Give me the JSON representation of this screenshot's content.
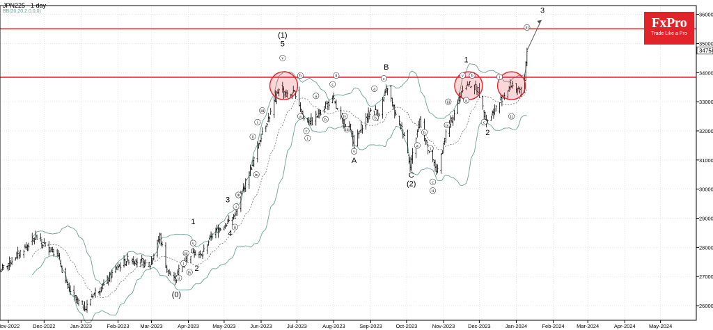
{
  "header": {
    "title": "JPN225 - 1 day",
    "indicator": "BB(20,20,2.0,0,0)"
  },
  "logo": {
    "brand": "FxPro",
    "tagline": "Trade Like a Pro"
  },
  "colors": {
    "candle": "#000000",
    "band": "#6b9e92",
    "middle": "#555555",
    "resistance": "#e3232a",
    "logo_bg": "#e3232a",
    "arrow_up": "#1a9a1a",
    "arrow_down": "#cc1a1a"
  },
  "chart_data": {
    "type": "candlestick",
    "symbol": "JPN225",
    "timeframe": "1 day",
    "ylim": [
      25500,
      36300
    ],
    "y_ticks": [
      26000,
      27000,
      28000,
      29000,
      30000,
      31000,
      32000,
      33000,
      34000,
      35000,
      36000
    ],
    "x_ticks": [
      "Nov-2022",
      "Dec-2022",
      "Jan-2023",
      "Feb-2023",
      "Mar-2023",
      "Apr-2023",
      "May-2023",
      "Jun-2023",
      "Jul-2023",
      "Aug-2023",
      "Sep-2023",
      "Oct-2023",
      "Nov-2023",
      "Dec-2023",
      "Jan-2024",
      "Feb-2024",
      "Mar-2024",
      "Apr-2024",
      "May-2024"
    ],
    "current_price": "34754",
    "resistance_levels": [
      35500,
      33840
    ],
    "close_path": [
      {
        "d": "2022-10-25",
        "v": 27200
      },
      {
        "d": "2022-11-05",
        "v": 27600
      },
      {
        "d": "2022-11-15",
        "v": 28000
      },
      {
        "d": "2022-11-24",
        "v": 28350
      },
      {
        "d": "2022-12-01",
        "v": 28100
      },
      {
        "d": "2022-12-12",
        "v": 27800
      },
      {
        "d": "2022-12-20",
        "v": 26700
      },
      {
        "d": "2022-12-28",
        "v": 26200
      },
      {
        "d": "2023-01-05",
        "v": 25900
      },
      {
        "d": "2023-01-11",
        "v": 26400
      },
      {
        "d": "2023-01-20",
        "v": 26700
      },
      {
        "d": "2023-01-31",
        "v": 27300
      },
      {
        "d": "2023-02-10",
        "v": 27600
      },
      {
        "d": "2023-02-20",
        "v": 27500
      },
      {
        "d": "2023-02-28",
        "v": 27400
      },
      {
        "d": "2023-03-08",
        "v": 28400
      },
      {
        "d": "2023-03-14",
        "v": 27200
      },
      {
        "d": "2023-03-20",
        "v": 26900
      },
      {
        "d": "2023-03-28",
        "v": 27500
      },
      {
        "d": "2023-04-05",
        "v": 27900
      },
      {
        "d": "2023-04-12",
        "v": 27700
      },
      {
        "d": "2023-04-20",
        "v": 28400
      },
      {
        "d": "2023-04-28",
        "v": 28700
      },
      {
        "d": "2023-05-05",
        "v": 28900
      },
      {
        "d": "2023-05-10",
        "v": 29100
      },
      {
        "d": "2023-05-17",
        "v": 30000
      },
      {
        "d": "2023-05-25",
        "v": 30900
      },
      {
        "d": "2023-06-02",
        "v": 32000
      },
      {
        "d": "2023-06-09",
        "v": 32600
      },
      {
        "d": "2023-06-16",
        "v": 33500
      },
      {
        "d": "2023-06-23",
        "v": 33200
      },
      {
        "d": "2023-06-30",
        "v": 33300
      },
      {
        "d": "2023-07-07",
        "v": 32400
      },
      {
        "d": "2023-07-14",
        "v": 32300
      },
      {
        "d": "2023-07-21",
        "v": 32700
      },
      {
        "d": "2023-07-31",
        "v": 33100
      },
      {
        "d": "2023-08-08",
        "v": 32300
      },
      {
        "d": "2023-08-15",
        "v": 32100
      },
      {
        "d": "2023-08-18",
        "v": 31500
      },
      {
        "d": "2023-08-25",
        "v": 32200
      },
      {
        "d": "2023-09-01",
        "v": 32700
      },
      {
        "d": "2023-09-08",
        "v": 32600
      },
      {
        "d": "2023-09-15",
        "v": 33500
      },
      {
        "d": "2023-09-22",
        "v": 32500
      },
      {
        "d": "2023-09-29",
        "v": 31900
      },
      {
        "d": "2023-10-04",
        "v": 30800
      },
      {
        "d": "2023-10-12",
        "v": 32400
      },
      {
        "d": "2023-10-20",
        "v": 31200
      },
      {
        "d": "2023-10-27",
        "v": 30600
      },
      {
        "d": "2023-11-03",
        "v": 31900
      },
      {
        "d": "2023-11-10",
        "v": 32600
      },
      {
        "d": "2023-11-17",
        "v": 33500
      },
      {
        "d": "2023-11-24",
        "v": 33600
      },
      {
        "d": "2023-11-30",
        "v": 33400
      },
      {
        "d": "2023-12-07",
        "v": 32300
      },
      {
        "d": "2023-12-14",
        "v": 32700
      },
      {
        "d": "2023-12-21",
        "v": 33200
      },
      {
        "d": "2023-12-28",
        "v": 33600
      },
      {
        "d": "2024-01-04",
        "v": 33300
      },
      {
        "d": "2024-01-08",
        "v": 33800
      },
      {
        "d": "2024-01-10",
        "v": 34754
      }
    ],
    "projection": [
      {
        "d": "2024-01-10",
        "v": 34754
      },
      {
        "d": "2024-01-22",
        "v": 35800
      }
    ],
    "circles": [
      {
        "d": "2023-06-20",
        "v": 33550
      },
      {
        "d": "2023-11-22",
        "v": 33550
      },
      {
        "d": "2023-12-28",
        "v": 33550
      }
    ],
    "wave_labels": [
      {
        "t": "(0)",
        "d": "2023-03-22",
        "v": 26300
      },
      {
        "t": "1",
        "d": "2023-04-05",
        "v": 28800
      },
      {
        "t": "2",
        "d": "2023-04-08",
        "v": 27200
      },
      {
        "t": "3",
        "d": "2023-05-04",
        "v": 29550
      },
      {
        "t": "4",
        "d": "2023-05-06",
        "v": 28400
      },
      {
        "t": "(1)",
        "d": "2023-06-19",
        "v": 35200
      },
      {
        "t": "5",
        "d": "2023-06-19",
        "v": 34900
      },
      {
        "t": "A",
        "d": "2023-08-18",
        "v": 30900
      },
      {
        "t": "B",
        "d": "2023-09-14",
        "v": 34100
      },
      {
        "t": "C",
        "d": "2023-10-05",
        "v": 30400
      },
      {
        "t": "(2)",
        "d": "2023-10-05",
        "v": 30100
      },
      {
        "t": "1",
        "d": "2023-11-20",
        "v": 34350
      },
      {
        "t": "2",
        "d": "2023-12-08",
        "v": 31850
      },
      {
        "t": "3",
        "d": "2024-01-23",
        "v": 36050
      }
    ],
    "sub_labels": [
      {
        "t": "i",
        "d": "2023-03-28",
        "v": 27450
      },
      {
        "t": "ii",
        "d": "2023-03-24",
        "v": 26950
      },
      {
        "t": "iii",
        "d": "2023-03-30",
        "v": 27800
      },
      {
        "t": "iv",
        "d": "2023-04-02",
        "v": 27150
      },
      {
        "t": "v",
        "d": "2023-04-05",
        "v": 28150
      },
      {
        "t": "i",
        "d": "2023-05-11",
        "v": 29400
      },
      {
        "t": "ii",
        "d": "2023-05-10",
        "v": 28700
      },
      {
        "t": "iii",
        "d": "2023-05-13",
        "v": 29800
      },
      {
        "t": "i",
        "d": "2023-05-29",
        "v": 32300
      },
      {
        "t": "ii",
        "d": "2023-05-25",
        "v": 31800
      },
      {
        "t": "iii",
        "d": "2023-06-02",
        "v": 32700
      },
      {
        "t": "iv",
        "d": "2023-05-28",
        "v": 30500
      },
      {
        "t": "v",
        "d": "2023-06-19",
        "v": 34500
      },
      {
        "t": "a",
        "d": "2023-07-04",
        "v": 32500
      },
      {
        "t": "b",
        "d": "2023-07-04",
        "v": 33900
      },
      {
        "t": "c",
        "d": "2023-07-09",
        "v": 32000
      },
      {
        "t": "i",
        "d": "2023-07-10",
        "v": 31750
      },
      {
        "t": "a",
        "d": "2023-07-17",
        "v": 33200
      },
      {
        "t": "b",
        "d": "2023-07-25",
        "v": 32400
      },
      {
        "t": "c",
        "d": "2023-07-31",
        "v": 33600
      },
      {
        "t": "ii",
        "d": "2023-08-03",
        "v": 33900
      },
      {
        "t": "iii",
        "d": "2023-08-12",
        "v": 32050
      },
      {
        "t": "iv",
        "d": "2023-08-10",
        "v": 32500
      },
      {
        "t": "v",
        "d": "2023-08-18",
        "v": 31300
      },
      {
        "t": "a",
        "d": "2023-09-04",
        "v": 33450
      },
      {
        "t": "b",
        "d": "2023-09-05",
        "v": 32450
      },
      {
        "t": "c",
        "d": "2023-09-12",
        "v": 33800
      },
      {
        "t": "a",
        "d": "2023-10-10",
        "v": 31500
      },
      {
        "t": "b",
        "d": "2023-10-16",
        "v": 31950
      },
      {
        "t": "c",
        "d": "2023-10-23",
        "v": 30250
      },
      {
        "t": "i",
        "d": "2023-10-21",
        "v": 31400
      },
      {
        "t": "ii",
        "d": "2023-10-23",
        "v": 29950
      },
      {
        "t": "iii",
        "d": "2023-11-05",
        "v": 33000
      },
      {
        "t": "iv",
        "d": "2023-11-04",
        "v": 32200
      },
      {
        "t": "v",
        "d": "2023-11-17",
        "v": 33900
      },
      {
        "t": "a",
        "d": "2023-11-20",
        "v": 33050
      },
      {
        "t": "b",
        "d": "2023-11-25",
        "v": 33900
      },
      {
        "t": "c",
        "d": "2023-12-05",
        "v": 32300
      },
      {
        "t": "i",
        "d": "2023-12-18",
        "v": 33850
      },
      {
        "t": "ii",
        "d": "2023-12-28",
        "v": 32500
      },
      {
        "t": "iii",
        "d": "2024-01-10",
        "v": 35550
      }
    ]
  }
}
